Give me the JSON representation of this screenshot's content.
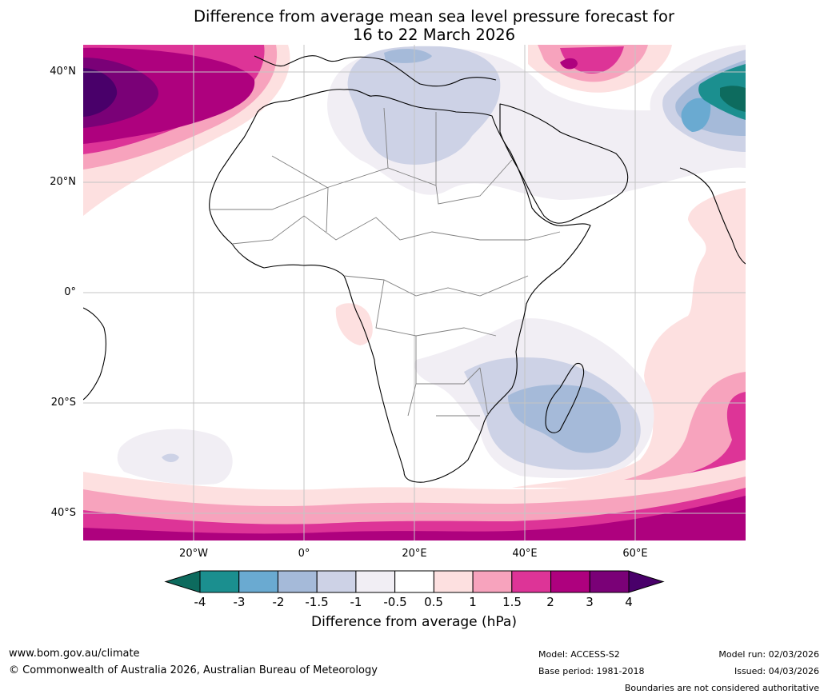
{
  "title": {
    "line1": "Difference from average mean sea level pressure forecast for",
    "line2": "16 to 22 March 2026"
  },
  "map": {
    "lat_labels": [
      "40°N",
      "20°N",
      "0°",
      "20°S",
      "40°S"
    ],
    "lon_labels": [
      "20°W",
      "0°",
      "20°E",
      "40°E",
      "60°E"
    ]
  },
  "colorbar": {
    "ticks": [
      "-4",
      "-3",
      "-2",
      "-1.5",
      "-1",
      "-0.5",
      "0.5",
      "1",
      "1.5",
      "2",
      "3",
      "4"
    ],
    "colors": [
      "#1b8f8f",
      "#6aaad1",
      "#a5bad9",
      "#cdd2e6",
      "#f1eef4",
      "#ffffff",
      "#fde0e0",
      "#f7a3bd",
      "#dd3497",
      "#ae017e",
      "#7a0177"
    ],
    "under_color": "#0d6b5e",
    "over_color": "#49006a",
    "label": "Difference from average (hPa)"
  },
  "footer": {
    "website": "www.bom.gov.au/climate",
    "copyright": "© Commonwealth of Australia 2026, Australian Bureau of Meteorology",
    "model": "Model: ACCESS-S2",
    "base_period": "Base period: 1981-2018",
    "model_run": "Model run: 02/03/2026",
    "issued": "Issued: 04/03/2026",
    "disclaimer": "Boundaries are not considered authoritative"
  }
}
